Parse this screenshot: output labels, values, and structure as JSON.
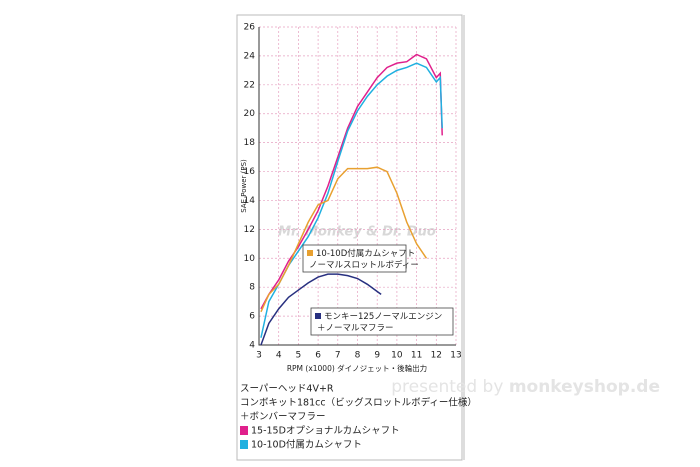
{
  "chart_data": {
    "type": "line",
    "ylabel": "SAE Power (PS)",
    "xlabel": "RPM (x1000) ダイノジェット・後輪出力",
    "xlim": [
      3,
      13
    ],
    "xticks": [
      3,
      4,
      5,
      6,
      7,
      8,
      9,
      10,
      11,
      12,
      13
    ],
    "ylim": [
      4,
      26
    ],
    "yticks": [
      4,
      6,
      8,
      10,
      12,
      14,
      16,
      18,
      20,
      22,
      24,
      26
    ],
    "grid": true,
    "watermark": "Mr. Monkey & Dr. Duo",
    "legend_title": [
      "スーパーヘッド4V+R",
      "コンボキット181cc（ビッグスロットルボディー仕様）",
      "＋ボンバーマフラー"
    ],
    "footer_prefix": "presented by",
    "footer_brand": "monkeyshop.de",
    "series": [
      {
        "name": "15-15Dオプショナルカムシャフト",
        "color": "#e0208c",
        "x": [
          3.1,
          3.5,
          4,
          4.5,
          5,
          5.5,
          6,
          6.5,
          7,
          7.5,
          8,
          8.5,
          9,
          9.5,
          10,
          10.5,
          11,
          11.5,
          12,
          12.2,
          12.3
        ],
        "values": [
          6.5,
          7.5,
          8.5,
          9.8,
          10.8,
          12,
          13.3,
          15,
          17,
          19,
          20.5,
          21.5,
          22.5,
          23.2,
          23.5,
          23.6,
          24.1,
          23.8,
          22.5,
          22.8,
          18.5
        ]
      },
      {
        "name": "10-10D付属カムシャフト",
        "color": "#20b0e0",
        "x": [
          3.1,
          3.5,
          4,
          4.5,
          5,
          5.5,
          6,
          6.5,
          7,
          7.5,
          8,
          8.5,
          9,
          9.5,
          10,
          10.5,
          11,
          11.5,
          12,
          12.2,
          12.3
        ],
        "values": [
          4.5,
          7,
          8.2,
          9.5,
          10.5,
          11.5,
          12.8,
          14.5,
          16.7,
          18.8,
          20.2,
          21.2,
          22,
          22.6,
          23,
          23.2,
          23.5,
          23.2,
          22.2,
          22.5,
          19
        ]
      },
      {
        "name": "10-10D付属カムシャフト",
        "subname": "ノーマルスロットルボディー",
        "color": "#e8a030",
        "x": [
          3.1,
          3.5,
          4,
          4.5,
          5,
          5.5,
          6,
          6.5,
          7,
          7.5,
          8,
          8.5,
          9,
          9.5,
          10,
          10.5,
          11,
          11.5
        ],
        "values": [
          6.3,
          7.5,
          8.2,
          9.5,
          11,
          12.5,
          13.7,
          14,
          15.5,
          16.2,
          16.2,
          16.2,
          16.3,
          16,
          14.5,
          12.5,
          11,
          10
        ]
      },
      {
        "name": "モンキー125ノーマルエンジン",
        "subname": "＋ノーマルマフラー",
        "color": "#283080",
        "x": [
          3.1,
          3.5,
          4,
          4.5,
          5,
          5.5,
          6,
          6.5,
          7,
          7.5,
          8,
          8.5,
          9,
          9.2
        ],
        "values": [
          4,
          5.5,
          6.5,
          7.3,
          7.8,
          8.3,
          8.7,
          8.9,
          8.9,
          8.8,
          8.6,
          8.2,
          7.7,
          7.5
        ]
      }
    ]
  }
}
